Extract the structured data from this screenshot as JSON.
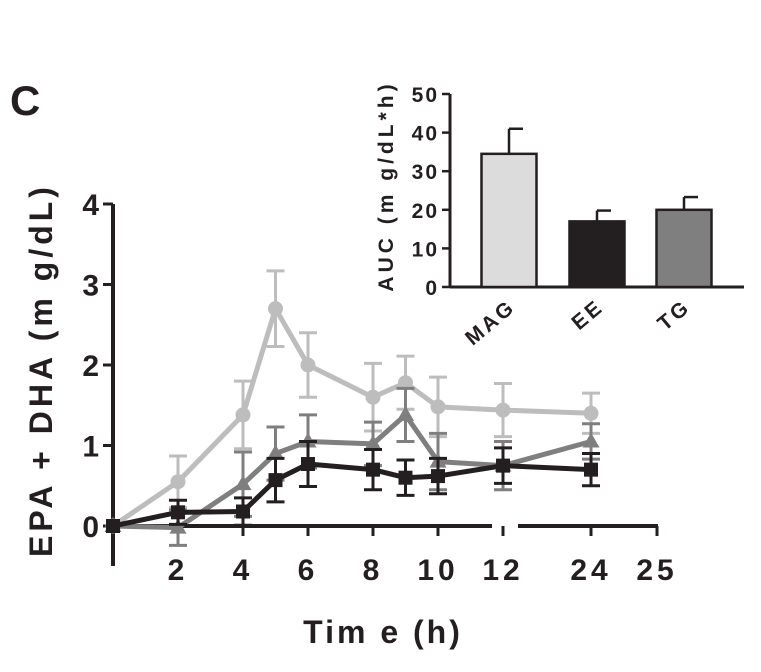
{
  "panel_label": "C",
  "colors": {
    "MAG": "#bdbdbd",
    "EE": "#231f20",
    "TG": "#7f7f7f",
    "MAG_bar": "#dcdcdc",
    "axis": "#231f20"
  },
  "chart_data": [
    {
      "type": "line",
      "title": "",
      "xlabel": "Tim e  (h)",
      "ylabel": "EPA + DHA  (m g/dL)",
      "xlim": [
        0,
        25
      ],
      "ylim": [
        0,
        4
      ],
      "y_ticks": [
        0,
        1,
        2,
        3,
        4
      ],
      "x_ticks": [
        2,
        4,
        6,
        8,
        10,
        12,
        24,
        25
      ],
      "x_tick_labels": [
        "2",
        "4",
        "6",
        "8",
        "10",
        "12",
        "24",
        "25"
      ],
      "x_axis_break": [
        12,
        24
      ],
      "grid": false,
      "legend": "none",
      "series": [
        {
          "key": "MAG",
          "marker": "circle",
          "x": [
            0,
            2,
            4,
            5,
            6,
            8,
            9,
            10,
            12,
            24
          ],
          "y": [
            0,
            0.55,
            1.38,
            2.7,
            2.0,
            1.6,
            1.78,
            1.48,
            1.44,
            1.4
          ],
          "err": [
            0,
            0.32,
            0.42,
            0.47,
            0.4,
            0.42,
            0.33,
            0.37,
            0.33,
            0.25
          ]
        },
        {
          "key": "TG",
          "marker": "triangle",
          "x": [
            0,
            2,
            4,
            5,
            6,
            8,
            9,
            10,
            12,
            24
          ],
          "y": [
            0,
            -0.02,
            0.52,
            0.9,
            1.05,
            1.02,
            1.38,
            0.8,
            0.75,
            1.05
          ],
          "err": [
            0,
            0.22,
            0.4,
            0.33,
            0.33,
            0.27,
            0.33,
            0.35,
            0.3,
            0.22
          ]
        },
        {
          "key": "EE",
          "marker": "square",
          "x": [
            0,
            2,
            4,
            5,
            6,
            8,
            9,
            10,
            12,
            24
          ],
          "y": [
            0,
            0.17,
            0.18,
            0.57,
            0.77,
            0.7,
            0.6,
            0.62,
            0.75,
            0.7
          ],
          "err": [
            0,
            0.15,
            0.17,
            0.27,
            0.28,
            0.25,
            0.22,
            0.22,
            0.22,
            0.2
          ]
        }
      ]
    },
    {
      "type": "bar",
      "title": "",
      "ylabel": "AUC  (m g/dL*h)",
      "categories": [
        "MAG",
        "EE",
        "TG"
      ],
      "values": [
        34.5,
        17.0,
        20.0
      ],
      "err": [
        6.5,
        2.8,
        3.3
      ],
      "ylim": [
        0,
        50
      ],
      "y_ticks": [
        0,
        10,
        20,
        30,
        40,
        50
      ],
      "grid": false,
      "legend": "none"
    }
  ]
}
